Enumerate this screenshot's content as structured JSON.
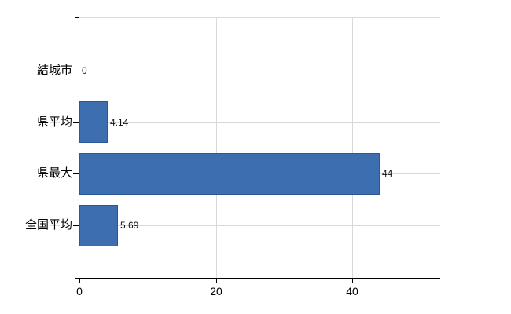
{
  "chart_data": {
    "type": "bar",
    "orientation": "horizontal",
    "title": "",
    "xlabel": "",
    "ylabel": "",
    "categories": [
      "結城市",
      "県平均",
      "県最大",
      "全国平均"
    ],
    "values": [
      0,
      4.14,
      44,
      5.69
    ],
    "value_labels": [
      "0",
      "4.14",
      "44",
      "5.69"
    ],
    "x_ticks": [
      0,
      20,
      40
    ],
    "x_tick_labels": [
      "0",
      "20",
      "40"
    ],
    "xlim": [
      0,
      52.9
    ],
    "grid": true,
    "legend": false,
    "colors": {
      "bar_fill": "#3d6eaf",
      "bar_border": "#2b5894",
      "gridline": "#d9d9d9",
      "axis": "#000000",
      "text": "#000000"
    }
  }
}
